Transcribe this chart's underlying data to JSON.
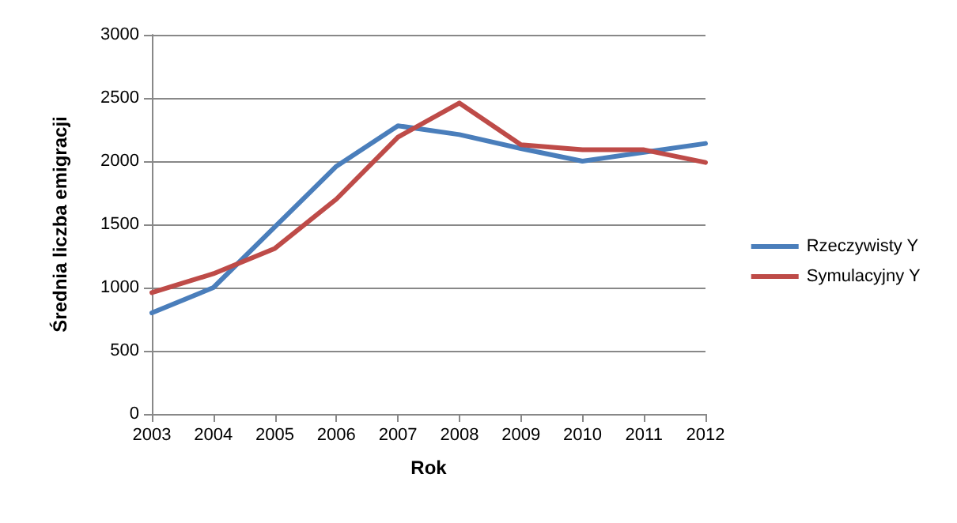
{
  "chart_data": {
    "type": "line",
    "xlabel": "Rok",
    "ylabel": "Średnia liczba emigracji",
    "categories": [
      "2003",
      "2004",
      "2005",
      "2006",
      "2007",
      "2008",
      "2009",
      "2010",
      "2011",
      "2012"
    ],
    "series": [
      {
        "name": "Rzeczywisty Y",
        "color": "#4a7ebb",
        "values": [
          800,
          1000,
          1480,
          1960,
          2280,
          2210,
          2100,
          2000,
          2070,
          2140
        ]
      },
      {
        "name": "Symulacyjny Y",
        "color": "#be4b48",
        "values": [
          960,
          1110,
          1310,
          1700,
          2190,
          2460,
          2130,
          2090,
          2090,
          1990
        ]
      }
    ],
    "ylim": [
      0,
      3000
    ],
    "yticks": [
      0,
      500,
      1000,
      1500,
      2000,
      2500,
      3000
    ],
    "grid": "y",
    "legend": "right",
    "marker": "none",
    "line_style": "solid"
  }
}
